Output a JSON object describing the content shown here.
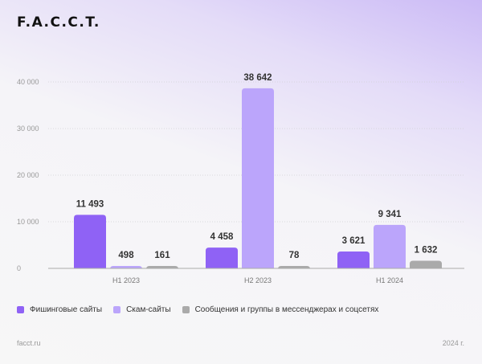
{
  "logo": "F.A.C.C.T.",
  "footer": {
    "site": "facct.ru",
    "year": "2024 г."
  },
  "chart_data": {
    "type": "bar",
    "categories": [
      "H1 2023",
      "H2 2023",
      "H1 2024"
    ],
    "series": [
      {
        "name": "Фишинговые сайты",
        "values": [
          11493,
          4458,
          3621
        ],
        "labels": [
          "11 493",
          "4 458",
          "3 621"
        ],
        "color": "#8f62f5"
      },
      {
        "name": "Скам-сайты",
        "values": [
          498,
          38642,
          9341
        ],
        "labels": [
          "498",
          "38 642",
          "9 341"
        ],
        "color": "#bba5fb"
      },
      {
        "name": "Сообщения и группы в мессенджерах и соцсетях",
        "values": [
          161,
          78,
          1632
        ],
        "labels": [
          "161",
          "78",
          "1 632"
        ],
        "color": "#aaaaaa"
      }
    ],
    "yticks": [
      0,
      10000,
      20000,
      30000,
      40000
    ],
    "ytick_labels": [
      "0",
      "10 000",
      "20 000",
      "30 000",
      "40 000"
    ],
    "ylim": [
      0,
      40000
    ],
    "grid": true,
    "legend": "bottom-left"
  }
}
